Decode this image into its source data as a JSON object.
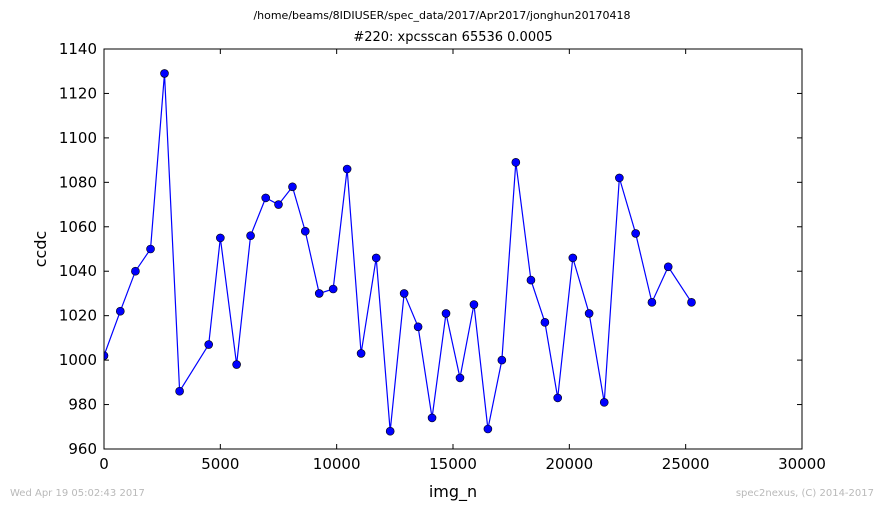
{
  "figure": {
    "suptitle": "/home/beams/8IDIUSER/spec_data/2017/Apr2017/jonghun20170418",
    "footer_left": "Wed Apr 19 05:02:43 2017",
    "footer_right": "spec2nexus, (C) 2014-2017"
  },
  "chart_data": {
    "type": "line",
    "title": "#220: xpcsscan 65536 0.0005",
    "xlabel": "img_n",
    "ylabel": "ccdc",
    "xlim": [
      0,
      30000
    ],
    "ylim": [
      960,
      1140
    ],
    "xticks": [
      0,
      5000,
      10000,
      15000,
      20000,
      25000,
      30000
    ],
    "yticks": [
      960,
      980,
      1000,
      1020,
      1040,
      1060,
      1080,
      1100,
      1120,
      1140
    ],
    "grid": false,
    "line_color": "#0000ff",
    "series": [
      {
        "marker": "circle",
        "x": [
          0,
          700,
          1350,
          2000,
          2600,
          3250,
          4500,
          5000,
          5700,
          6300,
          6950,
          7500,
          8100,
          8650,
          9250,
          9850,
          10450,
          11050,
          11700,
          12300,
          12900,
          13500,
          14100,
          14700,
          15300,
          15900,
          16500,
          17100,
          17700,
          18350,
          18950,
          19500,
          20150,
          20850,
          21500,
          22150,
          22850,
          23550,
          24250,
          25250
        ],
        "y": [
          1002,
          1022,
          1040,
          1050,
          1129,
          986,
          1007,
          1055,
          998,
          1056,
          1073,
          1070,
          1078,
          1058,
          1030,
          1032,
          1086,
          1003,
          1046,
          968,
          1030,
          1015,
          974,
          1021,
          992,
          1025,
          969,
          1000,
          1089,
          1036,
          1017,
          983,
          1046,
          1021,
          981,
          1082,
          1057,
          1026,
          1042,
          1026
        ]
      }
    ]
  }
}
